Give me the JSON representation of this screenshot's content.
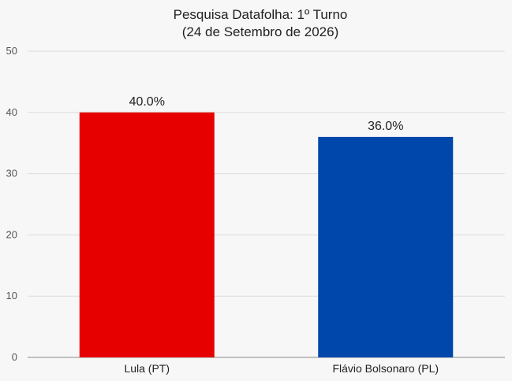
{
  "chart_data": {
    "type": "bar",
    "title": "Pesquisa Datafolha: 1º Turno",
    "subtitle": "(24 de Setembro de 2026)",
    "categories": [
      "Lula (PT)",
      "Flávio Bolsonaro (PL)"
    ],
    "values": [
      40.0,
      36.0
    ],
    "data_labels": [
      "40.0%",
      "36.0%"
    ],
    "colors": [
      "#e60000",
      "#0047ab"
    ],
    "xlabel": "",
    "ylabel": "",
    "ylim": [
      0,
      50
    ],
    "yticks": [
      0,
      10,
      20,
      30,
      40,
      50
    ],
    "grid": true,
    "legend": "none"
  }
}
